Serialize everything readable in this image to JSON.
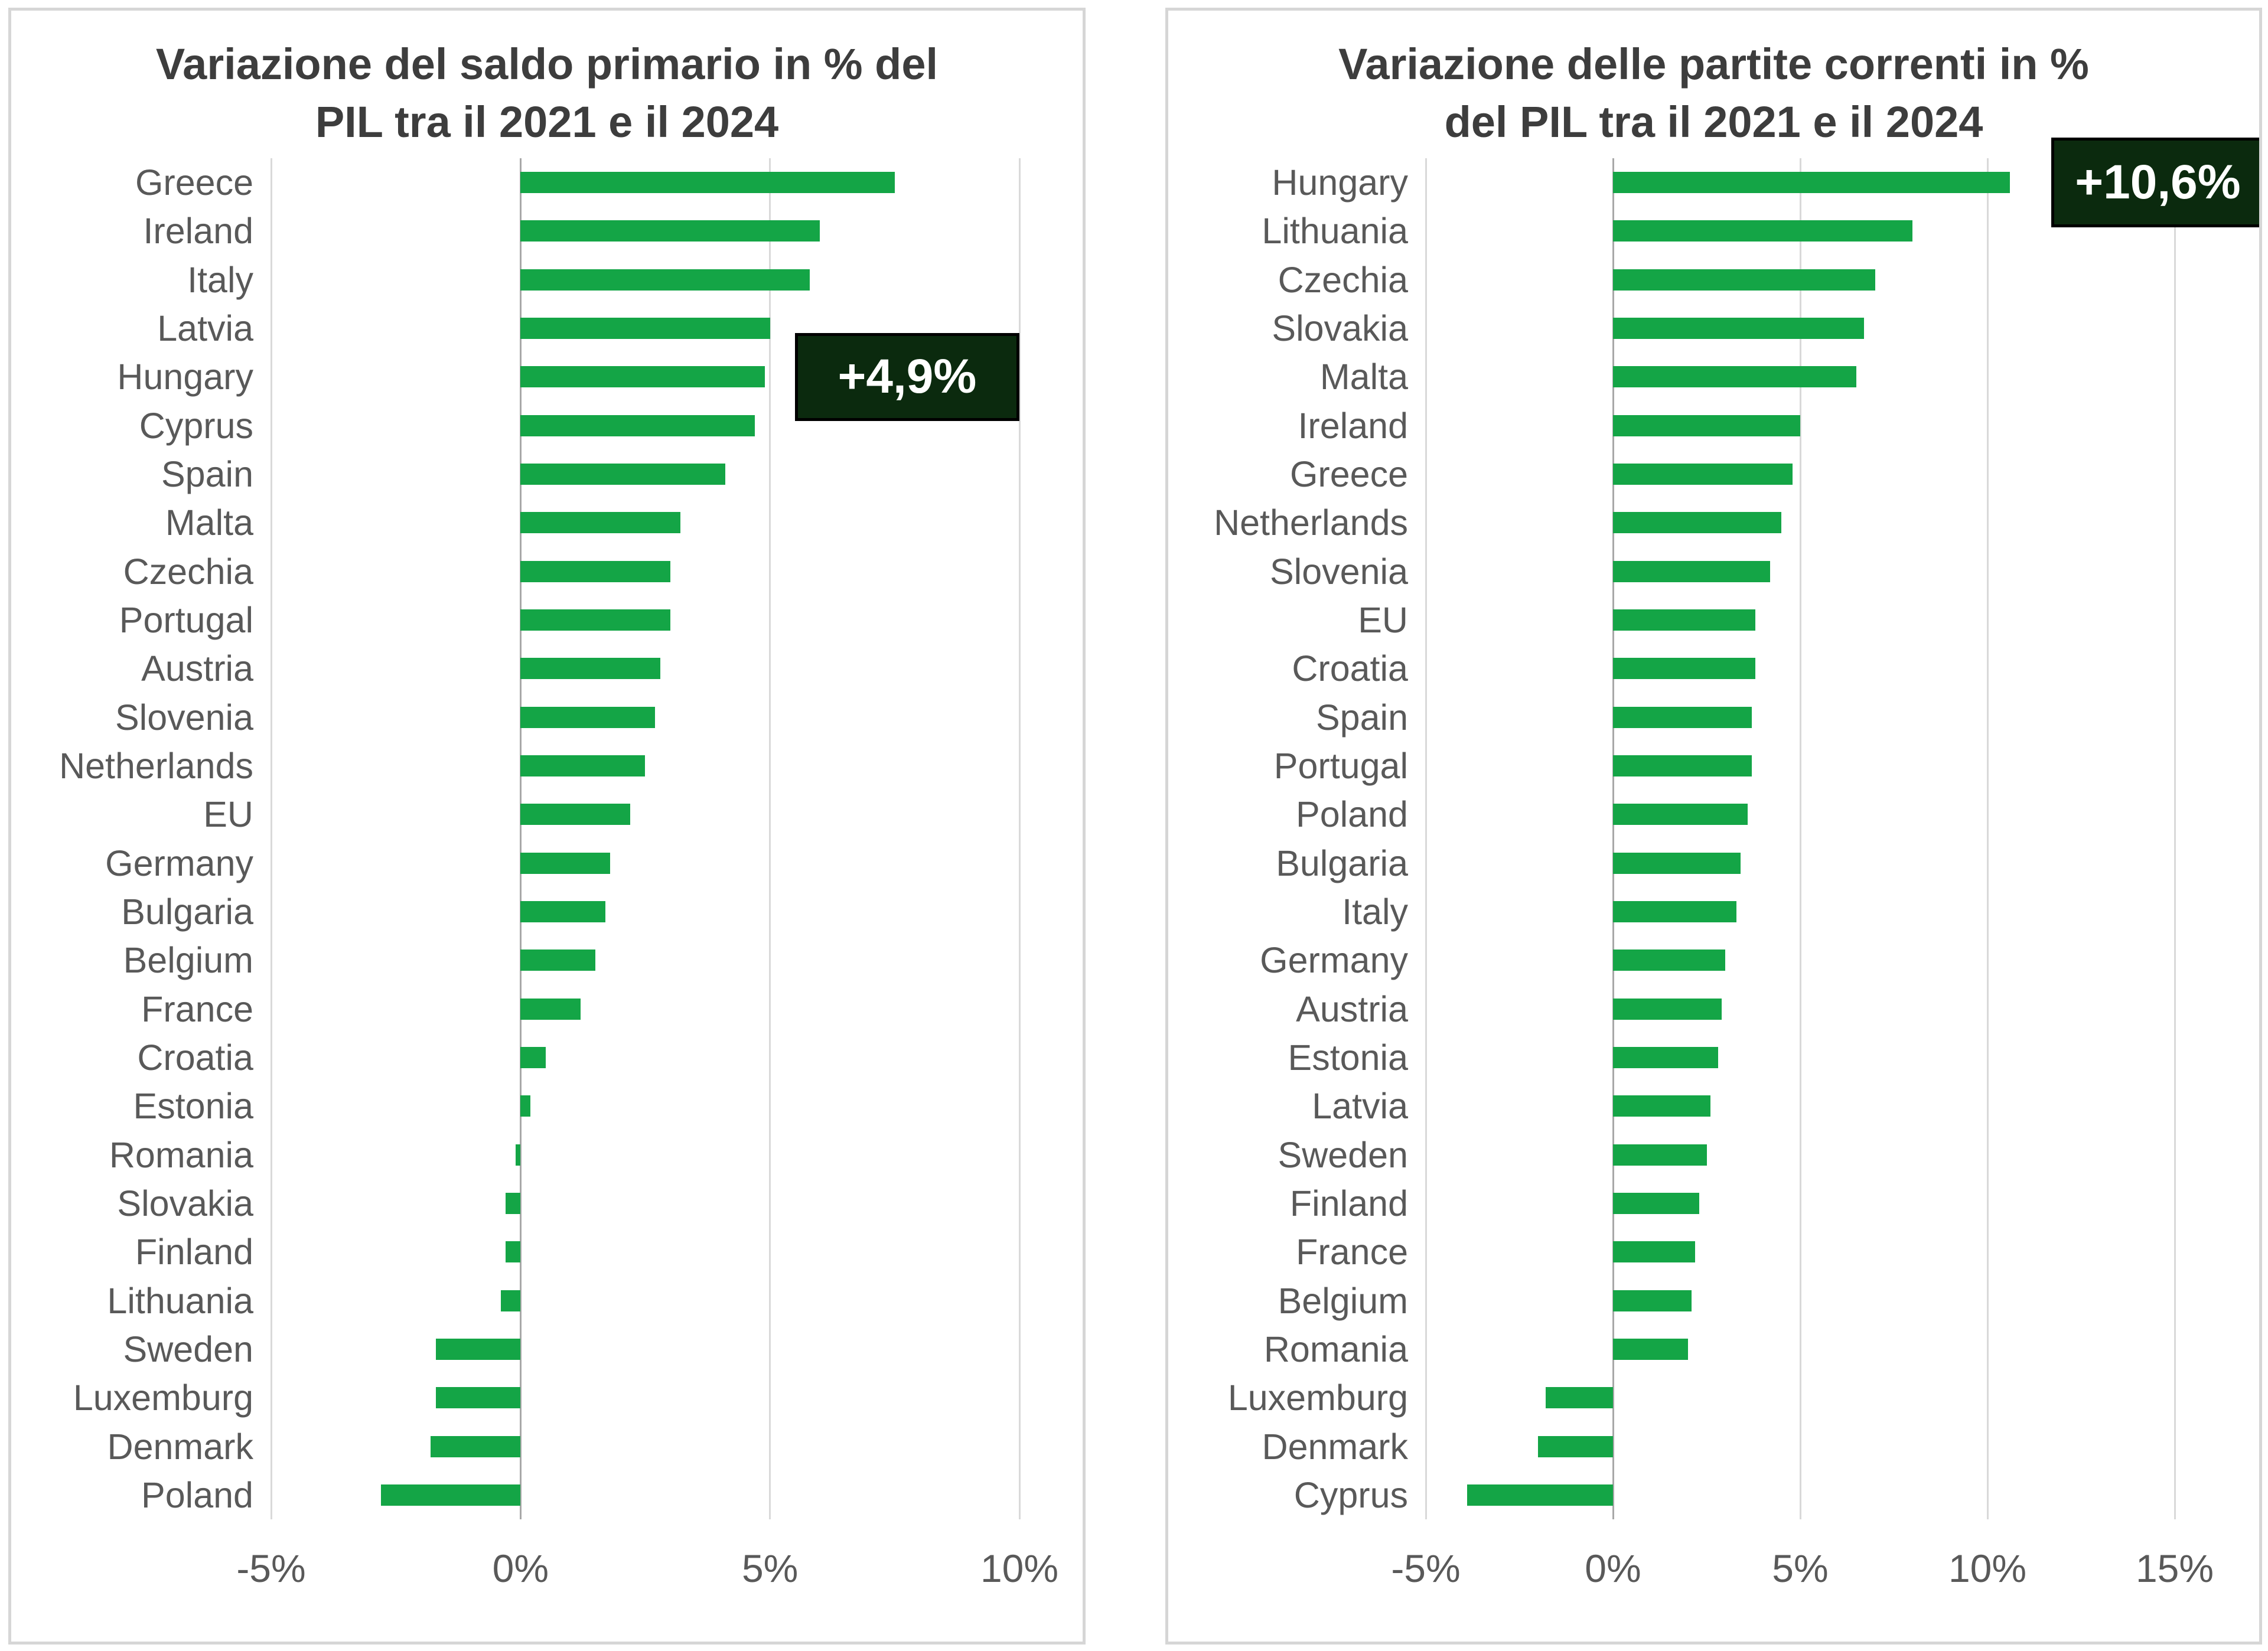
{
  "colors": {
    "bar": "#14A546",
    "gridline": "#D9D9D9",
    "zero_axis": "#A8A8A8",
    "title_text": "#3D3D3D",
    "label_text": "#595959",
    "panel_border": "#D6D6D6",
    "callout_bg": "#0B2A0E",
    "callout_border": "#000000",
    "callout_text": "#FFFFFF"
  },
  "chart_data": [
    {
      "type": "bar",
      "orientation": "horizontal",
      "title": "Variazione del saldo primario in % del PIL tra il 2021 e il 2024",
      "title_lines": [
        "Variazione del saldo primario in % del",
        "PIL tra il 2021 e il 2024"
      ],
      "categories": [
        "Greece",
        "Ireland",
        "Italy",
        "Latvia",
        "Hungary",
        "Cyprus",
        "Spain",
        "Malta",
        "Czechia",
        "Portugal",
        "Austria",
        "Slovenia",
        "Netherlands",
        "EU",
        "Germany",
        "Bulgaria",
        "Belgium",
        "France",
        "Croatia",
        "Estonia",
        "Romania",
        "Slovakia",
        "Finland",
        "Lithuania",
        "Sweden",
        "Luxemburg",
        "Denmark",
        "Poland"
      ],
      "values": [
        7.5,
        6.0,
        5.8,
        5.0,
        4.9,
        4.7,
        4.1,
        3.2,
        3.0,
        3.0,
        2.8,
        2.7,
        2.5,
        2.2,
        1.8,
        1.7,
        1.5,
        1.2,
        0.5,
        0.2,
        -0.1,
        -0.3,
        -0.3,
        -0.4,
        -1.7,
        -1.7,
        -1.8,
        -2.8
      ],
      "xlabel": "",
      "ylabel": "",
      "xlim": [
        -5,
        10
      ],
      "xtick_values": [
        -5,
        0,
        5,
        10
      ],
      "xticks": [
        "-5%",
        "0%",
        "5%",
        "10%"
      ],
      "grid": true,
      "annotation": {
        "label": "+4,9%",
        "target": "Hungary",
        "x_from": 5.5,
        "x_to": 10.0,
        "rows_tall": 1.8
      }
    },
    {
      "type": "bar",
      "orientation": "horizontal",
      "title": "Variazione delle partite correnti in % del PIL tra il 2021 e il 2024",
      "title_lines": [
        "Variazione delle partite correnti in %",
        "del PIL tra il 2021 e il 2024"
      ],
      "categories": [
        "Hungary",
        "Lithuania",
        "Czechia",
        "Slovakia",
        "Malta",
        "Ireland",
        "Greece",
        "Netherlands",
        "Slovenia",
        "EU",
        "Croatia",
        "Spain",
        "Portugal",
        "Poland",
        "Bulgaria",
        "Italy",
        "Germany",
        "Austria",
        "Estonia",
        "Latvia",
        "Sweden",
        "Finland",
        "France",
        "Belgium",
        "Romania",
        "Luxemburg",
        "Denmark",
        "Cyprus"
      ],
      "values": [
        10.6,
        8.0,
        7.0,
        6.7,
        6.5,
        5.0,
        4.8,
        4.5,
        4.2,
        3.8,
        3.8,
        3.7,
        3.7,
        3.6,
        3.4,
        3.3,
        3.0,
        2.9,
        2.8,
        2.6,
        2.5,
        2.3,
        2.2,
        2.1,
        2.0,
        -1.8,
        -2.0,
        -3.9
      ],
      "xlabel": "",
      "ylabel": "",
      "xlim": [
        -5,
        15
      ],
      "xtick_values": [
        -5,
        0,
        5,
        10,
        15
      ],
      "xticks": [
        "-5%",
        "0%",
        "5%",
        "10%",
        "15%"
      ],
      "grid": true,
      "annotation": {
        "label": "+10,6%",
        "target": "Hungary",
        "x_from": 11.7,
        "x_to": 17.4,
        "rows_tall": 1.85
      }
    }
  ]
}
